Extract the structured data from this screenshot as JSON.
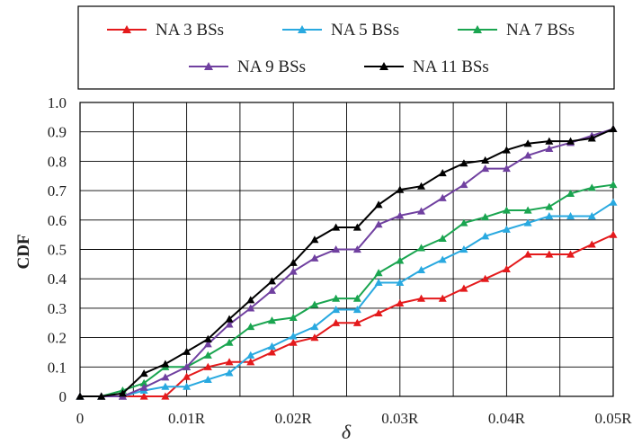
{
  "chart_data": {
    "type": "line",
    "xlabel": "δ",
    "ylabel": "CDF",
    "x": [
      0,
      0.002,
      0.004,
      0.006,
      0.008,
      0.01,
      0.012,
      0.014,
      0.016,
      0.018,
      0.02,
      0.022,
      0.024,
      0.026,
      0.028,
      0.03,
      0.032,
      0.034,
      0.036,
      0.038,
      0.04,
      0.042,
      0.044,
      0.046,
      0.048,
      0.05
    ],
    "xlim": [
      0,
      0.05
    ],
    "ylim": [
      0,
      1.0
    ],
    "x_ticks": [
      {
        "value": 0,
        "label": "0"
      },
      {
        "value": 0.01,
        "label": "0.01R"
      },
      {
        "value": 0.02,
        "label": "0.02R"
      },
      {
        "value": 0.03,
        "label": "0.03R"
      },
      {
        "value": 0.04,
        "label": "0.04R"
      },
      {
        "value": 0.05,
        "label": "0.05R"
      }
    ],
    "y_ticks": [
      {
        "value": 0,
        "label": "0"
      },
      {
        "value": 0.1,
        "label": "0.1"
      },
      {
        "value": 0.2,
        "label": "0.2"
      },
      {
        "value": 0.3,
        "label": "0.3"
      },
      {
        "value": 0.4,
        "label": "0.4"
      },
      {
        "value": 0.5,
        "label": "0.5"
      },
      {
        "value": 0.6,
        "label": "0.6"
      },
      {
        "value": 0.7,
        "label": "0.7"
      },
      {
        "value": 0.8,
        "label": "0.8"
      },
      {
        "value": 0.9,
        "label": "0.9"
      },
      {
        "value": 1.0,
        "label": "1.0"
      }
    ],
    "grid": true,
    "legend_position": "top",
    "series": [
      {
        "name": "NA 3 BSs",
        "color": "#e41a1c",
        "values": [
          0,
          0,
          0,
          0,
          0,
          0.067,
          0.1,
          0.117,
          0.117,
          0.15,
          0.183,
          0.2,
          0.25,
          0.25,
          0.283,
          0.317,
          0.333,
          0.333,
          0.367,
          0.4,
          0.433,
          0.483,
          0.483,
          0.483,
          0.517,
          0.55
        ]
      },
      {
        "name": "NA 5 BSs",
        "color": "#29a9e0",
        "values": [
          0,
          0,
          0,
          0.02,
          0.033,
          0.033,
          0.057,
          0.08,
          0.14,
          0.17,
          0.205,
          0.237,
          0.295,
          0.295,
          0.387,
          0.387,
          0.43,
          0.465,
          0.5,
          0.545,
          0.568,
          0.59,
          0.613,
          0.613,
          0.613,
          0.66
        ]
      },
      {
        "name": "NA 7 BSs",
        "color": "#1aa550",
        "values": [
          0,
          0,
          0.02,
          0.045,
          0.1,
          0.1,
          0.14,
          0.183,
          0.237,
          0.258,
          0.268,
          0.312,
          0.333,
          0.333,
          0.42,
          0.462,
          0.505,
          0.537,
          0.59,
          0.61,
          0.633,
          0.633,
          0.645,
          0.69,
          0.71,
          0.72
        ]
      },
      {
        "name": "NA 9 BSs",
        "color": "#7040a0",
        "values": [
          0,
          0,
          0,
          0.03,
          0.065,
          0.1,
          0.178,
          0.245,
          0.3,
          0.36,
          0.425,
          0.47,
          0.5,
          0.5,
          0.585,
          0.615,
          0.63,
          0.675,
          0.72,
          0.775,
          0.775,
          0.82,
          0.843,
          0.863,
          0.887,
          0.91
        ]
      },
      {
        "name": "NA 11 BSs",
        "color": "#000000",
        "values": [
          0,
          0,
          0.01,
          0.078,
          0.11,
          0.152,
          0.195,
          0.263,
          0.328,
          0.392,
          0.455,
          0.533,
          0.575,
          0.575,
          0.652,
          0.703,
          0.715,
          0.76,
          0.793,
          0.803,
          0.838,
          0.86,
          0.868,
          0.868,
          0.878,
          0.91
        ]
      }
    ]
  }
}
